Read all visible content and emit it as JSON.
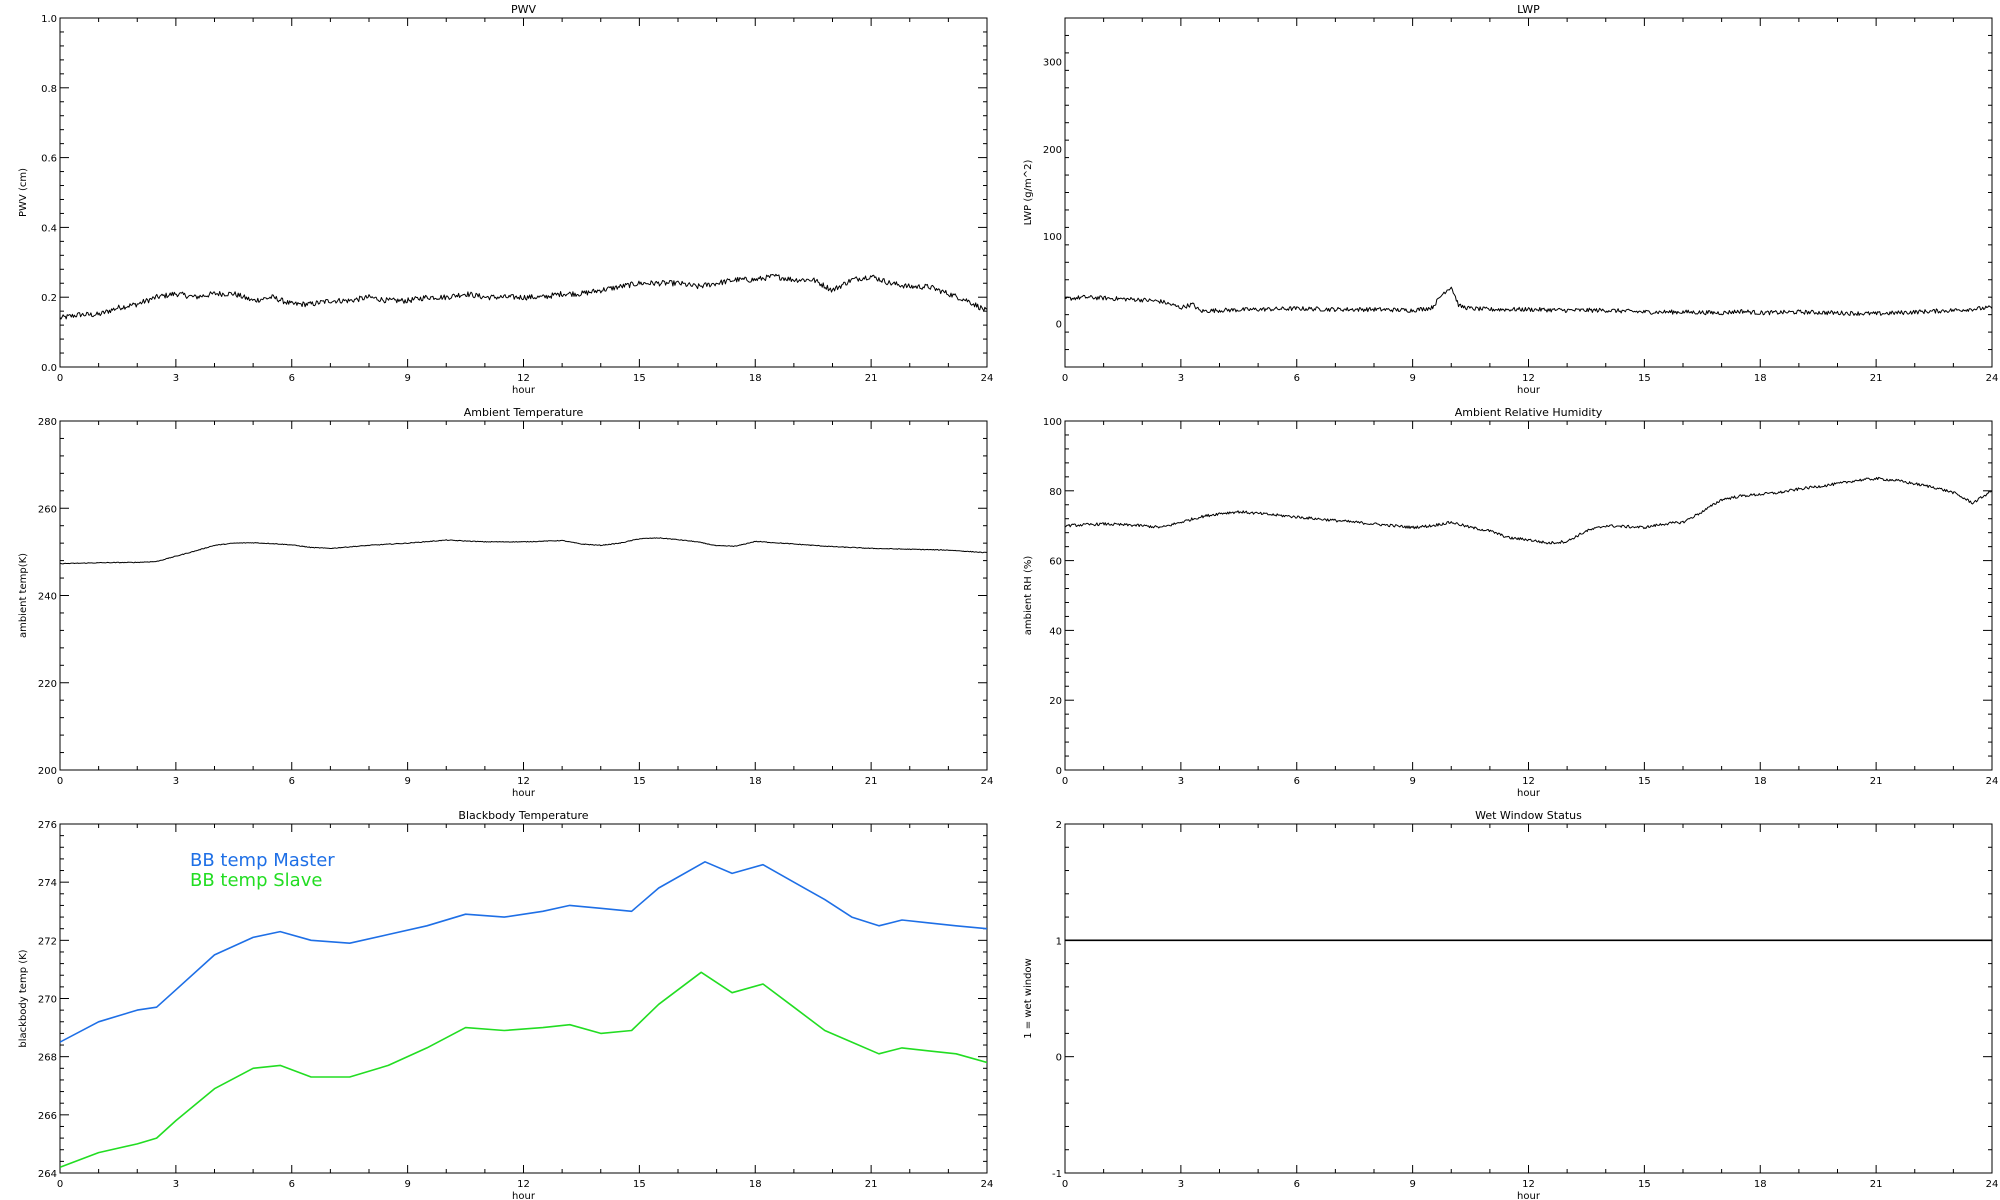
{
  "chart_data": [
    {
      "type": "line",
      "title": "PWV",
      "xlabel": "hour",
      "ylabel": "PWV (cm)",
      "xlim": [
        0,
        24
      ],
      "ylim": [
        0,
        1
      ],
      "xticks": [
        0,
        3,
        6,
        9,
        12,
        15,
        18,
        21,
        24
      ],
      "yticks": [
        0,
        0.2,
        0.4,
        0.6,
        0.8,
        1
      ],
      "ytick_labels": [
        "0.0",
        "0.2",
        "0.4",
        "0.6",
        "0.8",
        "1.0"
      ],
      "noise": 0.008,
      "series": [
        {
          "color": "#000000",
          "x": [
            0,
            0.5,
            1,
            1.5,
            2,
            2.5,
            3,
            3.5,
            4,
            4.5,
            5,
            5.5,
            6,
            6.5,
            7,
            7.5,
            8,
            8.5,
            9,
            9.5,
            10,
            10.5,
            11,
            11.5,
            12,
            12.5,
            13,
            13.5,
            14,
            14.5,
            15,
            15.5,
            16,
            16.5,
            17,
            17.5,
            18,
            18.5,
            19,
            19.5,
            20,
            20.5,
            21,
            21.5,
            22,
            22.5,
            23,
            23.5,
            24
          ],
          "values": [
            0.14,
            0.15,
            0.15,
            0.17,
            0.18,
            0.2,
            0.21,
            0.2,
            0.21,
            0.21,
            0.19,
            0.2,
            0.18,
            0.18,
            0.19,
            0.19,
            0.2,
            0.19,
            0.19,
            0.2,
            0.2,
            0.21,
            0.2,
            0.2,
            0.2,
            0.2,
            0.21,
            0.21,
            0.22,
            0.23,
            0.24,
            0.24,
            0.24,
            0.23,
            0.24,
            0.25,
            0.25,
            0.26,
            0.25,
            0.25,
            0.22,
            0.25,
            0.26,
            0.24,
            0.23,
            0.23,
            0.21,
            0.19,
            0.16
          ]
        }
      ]
    },
    {
      "type": "line",
      "title": "LWP",
      "xlabel": "hour",
      "ylabel": "LWP (g/m^2)",
      "xlim": [
        0,
        24
      ],
      "ylim": [
        -50,
        350
      ],
      "xticks": [
        0,
        3,
        6,
        9,
        12,
        15,
        18,
        21,
        24
      ],
      "yticks": [
        0,
        100,
        200,
        300
      ],
      "ytick_labels": [
        "0",
        "100",
        "200",
        "300"
      ],
      "noise": 2.5,
      "series": [
        {
          "color": "#000000",
          "x": [
            0,
            0.5,
            1,
            1.5,
            2,
            2.5,
            3,
            3.3,
            3.5,
            4,
            5,
            6,
            7,
            8,
            9,
            9.5,
            9.8,
            10,
            10.2,
            10.5,
            11,
            12,
            13,
            14,
            15,
            16,
            17,
            17.5,
            18,
            19,
            20,
            21,
            22,
            23,
            24
          ],
          "values": [
            28,
            30,
            29,
            28,
            27,
            25,
            18,
            22,
            14,
            15,
            16,
            17,
            16,
            16,
            15,
            18,
            35,
            42,
            20,
            17,
            16,
            16,
            15,
            15,
            13,
            13,
            12,
            14,
            12,
            13,
            12,
            11,
            13,
            15,
            18
          ]
        }
      ]
    },
    {
      "type": "line",
      "title": "Ambient Temperature",
      "xlabel": "hour",
      "ylabel": "ambient temp(K)",
      "xlim": [
        0,
        24
      ],
      "ylim": [
        200,
        280
      ],
      "xticks": [
        0,
        3,
        6,
        9,
        12,
        15,
        18,
        21,
        24
      ],
      "yticks": [
        200,
        220,
        240,
        260,
        280
      ],
      "ytick_labels": [
        "200",
        "220",
        "240",
        "260",
        "280"
      ],
      "noise": 0.08,
      "series": [
        {
          "color": "#000000",
          "x": [
            0,
            1,
            2,
            2.5,
            3,
            3.5,
            4,
            4.5,
            5,
            5.5,
            6,
            6.5,
            7,
            8,
            9,
            10,
            11,
            12,
            13,
            13.5,
            14,
            14.5,
            15,
            15.5,
            16,
            16.5,
            17,
            17.5,
            18,
            19,
            20,
            21,
            22,
            23,
            24
          ],
          "values": [
            247.3,
            247.5,
            247.6,
            247.8,
            249,
            250.2,
            251.5,
            252,
            252.1,
            251.9,
            251.6,
            251,
            250.8,
            251.5,
            252,
            252.7,
            252.3,
            252.3,
            252.6,
            251.8,
            251.5,
            252,
            253,
            253.2,
            252.8,
            252.3,
            251.4,
            251.3,
            252.4,
            251.8,
            251.2,
            250.8,
            250.6,
            250.4,
            249.8
          ]
        }
      ]
    },
    {
      "type": "line",
      "title": "Ambient Relative Humidity",
      "xlabel": "hour",
      "ylabel": "ambient RH (%)",
      "xlim": [
        0,
        24
      ],
      "ylim": [
        0,
        100
      ],
      "xticks": [
        0,
        3,
        6,
        9,
        12,
        15,
        18,
        21,
        24
      ],
      "yticks": [
        0,
        20,
        40,
        60,
        80,
        100
      ],
      "ytick_labels": [
        "0",
        "20",
        "40",
        "60",
        "80",
        "100"
      ],
      "noise": 0.4,
      "series": [
        {
          "color": "#000000",
          "x": [
            0,
            1,
            2,
            2.5,
            3,
            3.5,
            4,
            4.5,
            5,
            5.5,
            6,
            7,
            8,
            9,
            9.5,
            10,
            10.5,
            11,
            11.5,
            12,
            12.5,
            13,
            13.5,
            14,
            15,
            15.5,
            16,
            16.5,
            17,
            17.5,
            18,
            18.5,
            19,
            20,
            20.5,
            21,
            21.5,
            22,
            22.5,
            23,
            23.5,
            24
          ],
          "values": [
            70,
            70.5,
            70,
            69.5,
            71,
            72.5,
            73.5,
            74,
            73.5,
            73,
            72.5,
            71.5,
            70.5,
            69.5,
            70,
            71,
            69.5,
            68.5,
            66.5,
            66,
            65,
            65.5,
            68.5,
            70,
            69.5,
            70.5,
            71,
            74,
            77.5,
            78.5,
            79,
            79.5,
            80.5,
            82,
            83,
            83.5,
            83,
            82,
            81,
            79.5,
            76.5,
            80
          ]
        }
      ]
    },
    {
      "type": "line",
      "title": "Blackbody Temperature",
      "xlabel": "hour",
      "ylabel": "blackbody temp (K)",
      "xlim": [
        0,
        24
      ],
      "ylim": [
        264,
        276
      ],
      "xticks": [
        0,
        3,
        6,
        9,
        12,
        15,
        18,
        21,
        24
      ],
      "yticks": [
        264,
        266,
        268,
        270,
        272,
        274,
        276
      ],
      "ytick_labels": [
        "264",
        "266",
        "268",
        "270",
        "272",
        "274",
        "276"
      ],
      "noise": 0,
      "legend": "top-left",
      "series": [
        {
          "name": "BB temp Master",
          "color": "#1e6fe6",
          "x": [
            0,
            1,
            2,
            2.5,
            3,
            4,
            5,
            5.7,
            6.5,
            7.5,
            8.5,
            9.5,
            10.5,
            11.5,
            12.5,
            13.2,
            14,
            14.8,
            15.5,
            16.7,
            17.4,
            18.2,
            19,
            19.8,
            20.5,
            21.2,
            21.8,
            22.5,
            23.2,
            24
          ],
          "values": [
            268.5,
            269.2,
            269.6,
            269.7,
            270.3,
            271.5,
            272.1,
            272.3,
            272.0,
            271.9,
            272.2,
            272.5,
            272.9,
            272.8,
            273.0,
            273.2,
            273.1,
            273.0,
            273.8,
            274.7,
            274.3,
            274.6,
            274.0,
            273.4,
            272.8,
            272.5,
            272.7,
            272.6,
            272.5,
            272.4
          ]
        },
        {
          "name": "BB temp Slave",
          "color": "#22dd22",
          "x": [
            0,
            1,
            2,
            2.5,
            3,
            4,
            5,
            5.7,
            6.5,
            7.5,
            8.5,
            9.5,
            10.5,
            11.5,
            12.5,
            13.2,
            14,
            14.8,
            15.5,
            16.6,
            17.4,
            18.2,
            19,
            19.8,
            20.5,
            21.2,
            21.8,
            22.5,
            23.2,
            24
          ],
          "values": [
            264.2,
            264.7,
            265.0,
            265.2,
            265.8,
            266.9,
            267.6,
            267.7,
            267.3,
            267.3,
            267.7,
            268.3,
            269.0,
            268.9,
            269.0,
            269.1,
            268.8,
            268.9,
            269.8,
            270.9,
            270.2,
            270.5,
            269.7,
            268.9,
            268.5,
            268.1,
            268.3,
            268.2,
            268.1,
            267.8
          ]
        }
      ]
    },
    {
      "type": "line",
      "title": "Wet Window Status",
      "xlabel": "hour",
      "ylabel": "1 = wet window",
      "xlim": [
        0,
        24
      ],
      "ylim": [
        -1,
        2
      ],
      "xticks": [
        0,
        3,
        6,
        9,
        12,
        15,
        18,
        21,
        24
      ],
      "yticks": [
        -1,
        0,
        1,
        2
      ],
      "ytick_labels": [
        "-1",
        "0",
        "1",
        "2"
      ],
      "noise": 0,
      "series": [
        {
          "color": "#000000",
          "x": [
            0,
            24
          ],
          "values": [
            1,
            1
          ]
        }
      ]
    }
  ]
}
